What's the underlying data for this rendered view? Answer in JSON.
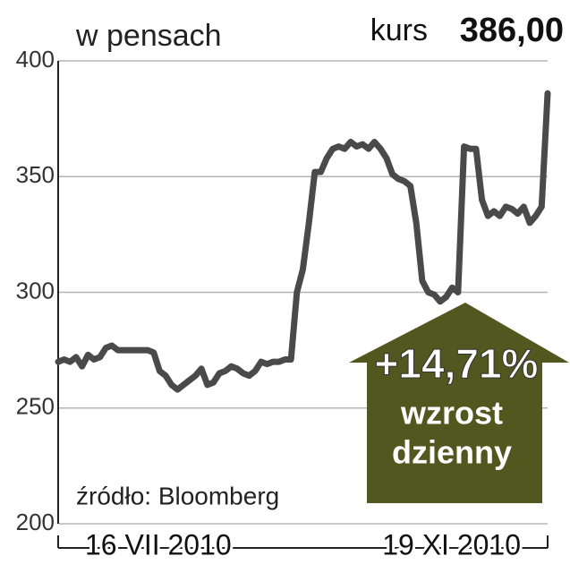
{
  "chart_data": {
    "type": "line",
    "unit_label": "w pensach",
    "price_caption": "kurs",
    "price_value": "386,00",
    "annotation": "+14,71%",
    "annotation_text": [
      "wzrost",
      "dzienny"
    ],
    "source": "źródło: Bloomberg",
    "categories": [
      "16 VII 2010",
      null,
      null,
      null,
      null,
      null,
      null,
      null,
      null,
      null,
      null,
      null,
      null,
      null,
      null,
      null,
      null,
      null,
      null,
      null,
      null,
      null,
      null,
      null,
      null,
      null,
      null,
      null,
      null,
      null,
      null,
      null,
      null,
      null,
      null,
      null,
      null,
      null,
      null,
      null,
      null,
      null,
      null,
      null,
      null,
      null,
      null,
      null,
      null,
      null,
      null,
      null,
      null,
      null,
      null,
      null,
      null,
      null,
      null,
      null,
      null,
      null,
      null,
      null,
      null,
      null,
      null,
      null,
      null,
      null,
      null,
      null,
      null,
      null,
      null,
      null,
      null,
      null,
      null,
      null,
      null,
      null,
      "19 XI 2010"
    ],
    "series": [
      {
        "name": "kurs",
        "color": "#4a4a4a",
        "values": [
          270,
          271,
          270,
          272,
          268,
          273,
          271,
          272,
          276,
          277,
          275,
          275,
          275,
          275,
          275,
          275,
          274,
          266,
          264,
          260,
          258,
          260,
          262,
          264,
          267,
          260,
          261,
          265,
          266,
          268,
          267,
          265,
          264,
          266,
          270,
          269,
          270,
          270,
          271,
          271,
          300,
          310,
          330,
          352,
          352,
          358,
          362,
          363,
          362,
          365,
          363,
          364,
          362,
          365,
          362,
          358,
          351,
          349,
          348,
          346,
          330,
          305,
          300,
          299,
          296,
          298,
          302,
          300,
          363,
          362,
          362,
          340,
          333,
          335,
          333,
          337,
          336,
          334,
          337,
          330,
          333,
          337,
          386
        ]
      }
    ],
    "ylim": [
      200,
      400
    ],
    "yticks": [
      200,
      250,
      300,
      350,
      400
    ],
    "grid": true
  }
}
